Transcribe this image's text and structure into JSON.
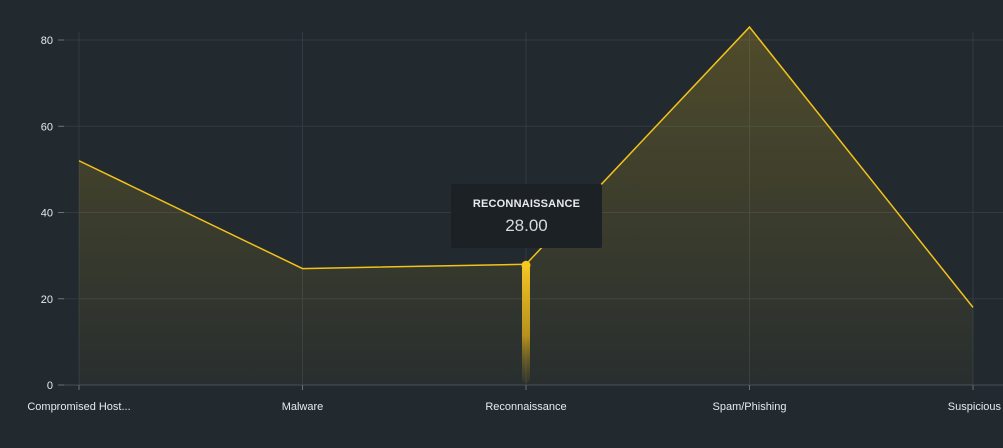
{
  "chart_data": {
    "type": "area",
    "categories": [
      "Compromised Host...",
      "Malware",
      "Reconnaissance",
      "Spam/Phishing",
      "Suspicious"
    ],
    "values": [
      52,
      27,
      28,
      83,
      18
    ],
    "ylim": [
      0,
      82
    ],
    "yticks": [
      0,
      20,
      40,
      60,
      80
    ],
    "grid": true,
    "line_color": "#f2c21b",
    "fill_color": "#f2c21b",
    "background": "#222a2f",
    "highlighted_index": 2,
    "tooltip": {
      "title": "RECONNAISSANCE",
      "value": "28.00"
    }
  }
}
